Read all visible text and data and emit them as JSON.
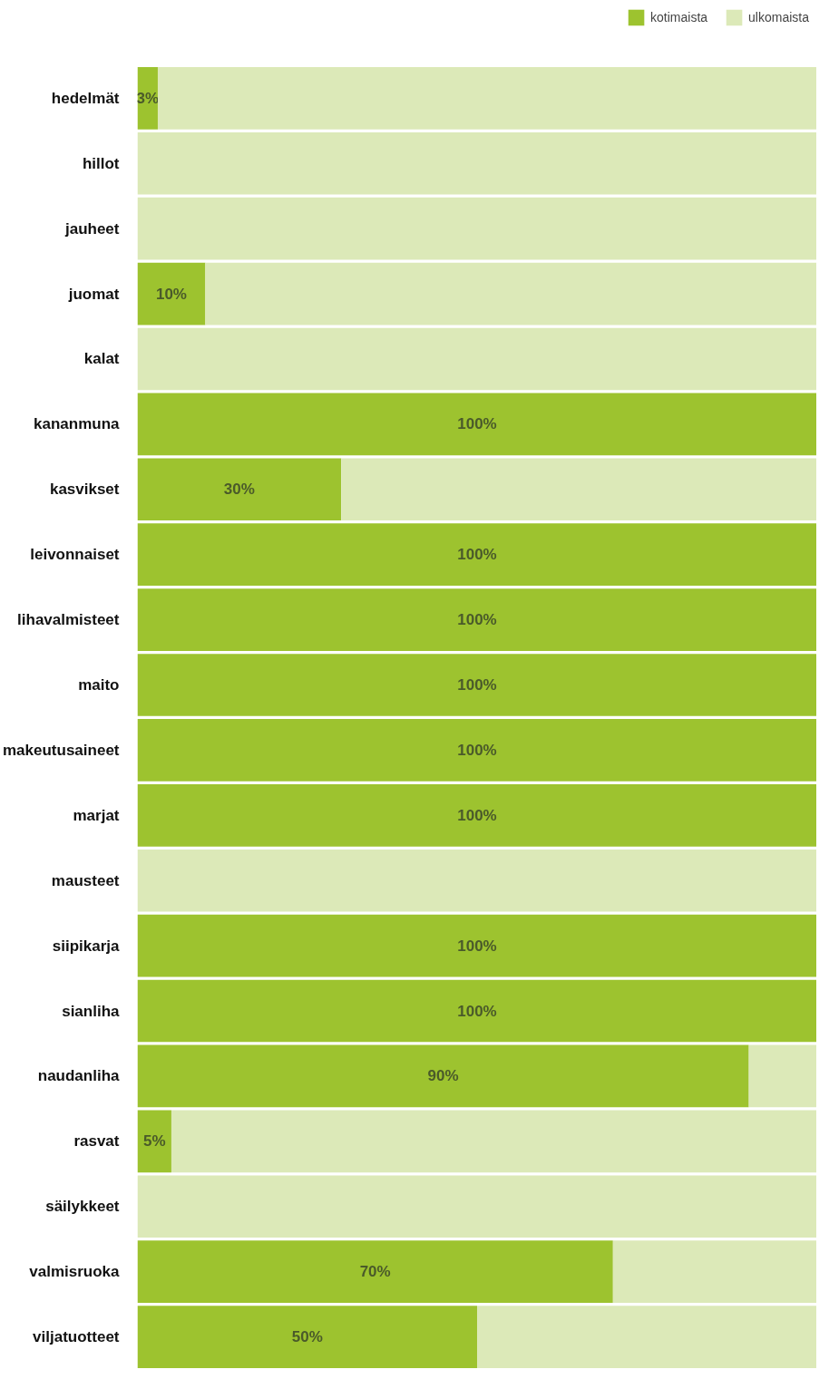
{
  "chart_data": {
    "type": "bar",
    "orientation": "horizontal",
    "stacked": true,
    "categories": [
      "hedelmät",
      "hillot",
      "jauheet",
      "juomat",
      "kalat",
      "kananmuna",
      "kasvikset",
      "leivonnaiset",
      "lihavalmisteet",
      "maito",
      "makeutusaineet",
      "marjat",
      "mausteet",
      "siipikarja",
      "sianliha",
      "naudanliha",
      "rasvat",
      "säilykkeet",
      "valmisruoka",
      "viljatuotteet"
    ],
    "series": [
      {
        "name": "kotimaista",
        "color": "#9dc32f",
        "values": [
          3,
          0,
          0,
          10,
          0,
          100,
          30,
          100,
          100,
          100,
          100,
          100,
          0,
          100,
          100,
          90,
          5,
          0,
          70,
          50
        ],
        "value_labels": [
          "3%",
          null,
          null,
          "10%",
          null,
          "100%",
          "30%",
          "100%",
          "100%",
          "100%",
          "100%",
          "100%",
          null,
          "100%",
          "100%",
          "90%",
          "5%",
          null,
          "70%",
          "50%"
        ]
      },
      {
        "name": "ulkomaista",
        "color": "#dce9b8",
        "values": [
          97,
          100,
          100,
          90,
          100,
          0,
          70,
          0,
          0,
          0,
          0,
          0,
          100,
          0,
          0,
          10,
          95,
          100,
          30,
          50
        ]
      }
    ],
    "xlim": [
      0,
      100
    ],
    "tick_labels": "y",
    "legend": "top right",
    "grid": false
  }
}
